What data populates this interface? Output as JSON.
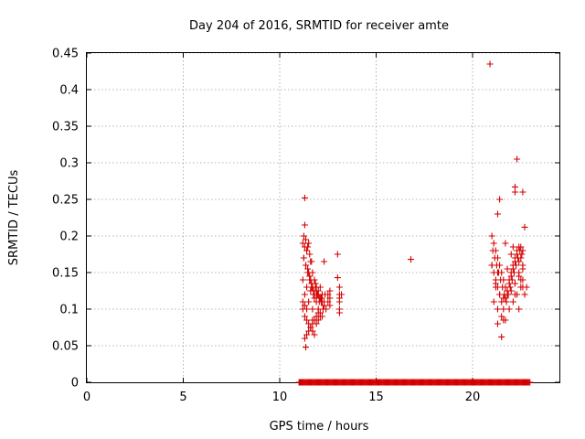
{
  "chart_data": {
    "type": "scatter",
    "title": "Day 204 of 2016, SRMTID for receiver amte",
    "xlabel": "GPS time / hours",
    "ylabel": "SRMTID / TECUs",
    "xlim": [
      0,
      24.5
    ],
    "ylim": [
      0,
      0.45
    ],
    "xticks": [
      0,
      5,
      10,
      15,
      20
    ],
    "yticks": [
      0,
      0.05,
      0.1,
      0.15,
      0.2,
      0.25,
      0.3,
      0.35,
      0.4,
      0.45
    ],
    "ytick_labels": [
      "0",
      "0.05",
      "0.1",
      "0.15",
      "0.2",
      "0.25",
      "0.3",
      "0.35",
      "0.4",
      "0.45"
    ],
    "grid": true,
    "marker": "plus",
    "color": "#d40000",
    "series": [
      {
        "name": "SRMTID",
        "x": [
          11.2,
          11.25,
          11.3,
          11.35,
          11.4,
          11.45,
          11.5,
          11.55,
          11.6,
          11.65,
          11.7,
          11.75,
          11.8,
          11.85,
          11.9,
          11.95,
          12.0,
          12.05,
          12.1,
          12.15,
          12.2,
          12.25,
          12.3,
          12.35,
          12.4,
          12.5,
          12.6,
          11.2,
          11.3,
          11.4,
          11.5,
          11.6,
          11.7,
          11.8,
          11.9,
          12.0,
          12.1,
          12.2,
          12.3,
          11.25,
          11.35,
          11.45,
          11.55,
          11.65,
          11.75,
          11.85,
          11.95,
          12.05,
          12.15,
          12.25,
          11.2,
          11.3,
          11.4,
          11.5,
          11.6,
          11.7,
          11.8,
          11.9,
          12.0,
          12.1,
          11.3,
          11.4,
          11.5,
          11.6,
          11.7,
          11.8,
          11.25,
          11.35,
          11.45,
          11.55,
          11.65,
          11.2,
          11.3,
          11.4,
          11.3,
          11.3,
          11.35,
          12.3,
          12.5,
          12.6,
          12.6,
          13.0,
          13.0,
          13.1,
          13.1,
          13.1,
          13.1,
          13.1,
          13.2,
          13.1,
          11.5,
          11.6,
          11.7,
          11.8,
          11.9,
          12.0,
          12.1,
          12.2,
          11.7,
          11.9,
          12.0,
          16.8,
          20.9,
          21.0,
          21.1,
          21.2,
          21.3,
          21.4,
          21.5,
          21.6,
          21.7,
          21.8,
          21.9,
          22.0,
          22.1,
          22.2,
          22.3,
          22.4,
          22.5,
          22.6,
          22.7,
          21.0,
          21.1,
          21.2,
          21.3,
          21.4,
          21.5,
          21.6,
          21.7,
          21.8,
          21.9,
          22.0,
          22.1,
          22.2,
          22.3,
          22.4,
          22.5,
          22.6,
          21.05,
          21.15,
          21.25,
          21.35,
          21.45,
          21.55,
          21.65,
          21.75,
          21.85,
          21.95,
          22.05,
          22.15,
          22.25,
          22.35,
          22.45,
          22.55,
          21.1,
          21.3,
          21.5,
          21.7,
          21.9,
          22.1,
          22.3,
          22.5,
          21.2,
          21.4,
          21.6,
          22.0,
          22.2,
          22.4,
          22.6,
          21.3,
          21.5,
          21.3,
          21.4,
          21.7,
          22.2,
          22.2,
          22.6,
          22.7,
          22.3,
          22.1,
          21.0,
          21.2,
          21.3,
          22.5,
          22.6,
          21.8,
          22.0,
          22.4,
          22.6,
          22.8,
          21.6,
          22.2,
          22.4
        ],
        "y": [
          0.19,
          0.17,
          0.185,
          0.16,
          0.18,
          0.15,
          0.19,
          0.14,
          0.165,
          0.13,
          0.15,
          0.12,
          0.14,
          0.135,
          0.13,
          0.12,
          0.125,
          0.11,
          0.13,
          0.115,
          0.12,
          0.1,
          0.11,
          0.12,
          0.1,
          0.11,
          0.105,
          0.14,
          0.12,
          0.13,
          0.11,
          0.125,
          0.1,
          0.115,
          0.12,
          0.1,
          0.095,
          0.09,
          0.105,
          0.17,
          0.16,
          0.155,
          0.145,
          0.135,
          0.125,
          0.13,
          0.12,
          0.115,
          0.11,
          0.1,
          0.1,
          0.09,
          0.085,
          0.08,
          0.075,
          0.07,
          0.065,
          0.08,
          0.085,
          0.09,
          0.06,
          0.065,
          0.07,
          0.075,
          0.08,
          0.085,
          0.2,
          0.195,
          0.185,
          0.175,
          0.165,
          0.11,
          0.105,
          0.1,
          0.252,
          0.215,
          0.048,
          0.165,
          0.12,
          0.115,
          0.125,
          0.175,
          0.143,
          0.12,
          0.11,
          0.1,
          0.095,
          0.13,
          0.12,
          0.115,
          0.15,
          0.14,
          0.13,
          0.12,
          0.11,
          0.12,
          0.115,
          0.11,
          0.085,
          0.09,
          0.095,
          0.168,
          0.435,
          0.2,
          0.19,
          0.18,
          0.17,
          0.16,
          0.15,
          0.14,
          0.13,
          0.12,
          0.14,
          0.15,
          0.16,
          0.17,
          0.18,
          0.15,
          0.14,
          0.13,
          0.12,
          0.16,
          0.15,
          0.14,
          0.13,
          0.12,
          0.11,
          0.1,
          0.115,
          0.125,
          0.135,
          0.145,
          0.155,
          0.165,
          0.175,
          0.185,
          0.17,
          0.16,
          0.18,
          0.17,
          0.16,
          0.15,
          0.14,
          0.13,
          0.12,
          0.11,
          0.12,
          0.13,
          0.14,
          0.15,
          0.16,
          0.17,
          0.18,
          0.175,
          0.11,
          0.1,
          0.09,
          0.085,
          0.1,
          0.11,
          0.12,
          0.13,
          0.13,
          0.12,
          0.115,
          0.125,
          0.135,
          0.145,
          0.155,
          0.08,
          0.062,
          0.23,
          0.25,
          0.19,
          0.267,
          0.26,
          0.26,
          0.212,
          0.305,
          0.185,
          0.16,
          0.135,
          0.15,
          0.185,
          0.18,
          0.155,
          0.175,
          0.165,
          0.14,
          0.13,
          0.085,
          0.12,
          0.1
        ],
        "zero_band": {
          "x_from": 11.0,
          "x_to": 23.0,
          "y": 0
        }
      }
    ]
  }
}
